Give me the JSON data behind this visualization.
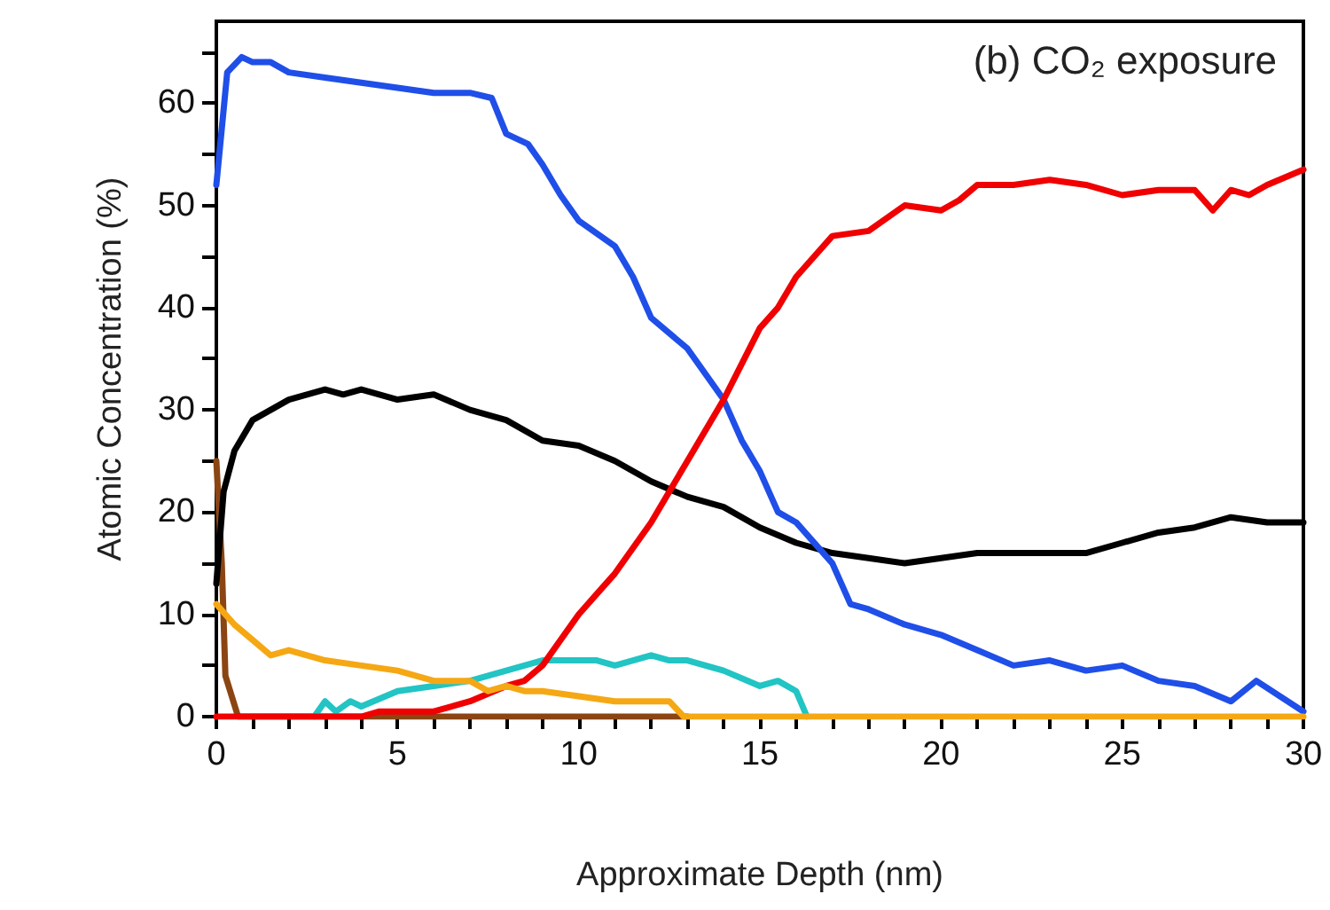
{
  "chart_data": {
    "type": "line",
    "title": "(b) CO₂ exposure",
    "xlabel": "Approximate Depth (nm)",
    "ylabel": "Atomic Concentration (%)",
    "xlim": [
      0,
      30
    ],
    "xticks": [
      0,
      {
        "value": 1,
        "label": null
      },
      {
        "value": 2,
        "label": null
      },
      {
        "value": 3,
        "label": null
      },
      {
        "value": 4,
        "label": null
      },
      5,
      {
        "value": 6,
        "label": null
      },
      {
        "value": 7,
        "label": null
      },
      {
        "value": 8,
        "label": null
      },
      {
        "value": 9,
        "label": null
      },
      10,
      {
        "value": 11,
        "label": null
      },
      {
        "value": 12,
        "label": null
      },
      {
        "value": 13,
        "label": null
      },
      {
        "value": 14,
        "label": null
      },
      15,
      {
        "value": 16,
        "label": null
      },
      {
        "value": 17,
        "label": null
      },
      {
        "value": 18,
        "label": null
      },
      {
        "value": 19,
        "label": null
      },
      20,
      {
        "value": 21,
        "label": null
      },
      {
        "value": 22,
        "label": null
      },
      {
        "value": 23,
        "label": null
      },
      {
        "value": 24,
        "label": null
      },
      25,
      {
        "value": 26,
        "label": null
      },
      {
        "value": 27,
        "label": null
      },
      {
        "value": 28,
        "label": null
      },
      {
        "value": 29,
        "label": null
      },
      30
    ],
    "ylim": [
      0,
      68
    ],
    "yticks": [
      0,
      {
        "value": 5,
        "label": null
      },
      10,
      {
        "value": 15,
        "label": null
      },
      20,
      {
        "value": 25,
        "label": null
      },
      30,
      {
        "value": 35,
        "label": null
      },
      40,
      {
        "value": 45,
        "label": null
      },
      50,
      {
        "value": 55,
        "label": null
      },
      60,
      {
        "value": 65,
        "label": null
      }
    ],
    "grid": false,
    "marker": "none",
    "line_style": "solid",
    "series": [
      {
        "color": "#8b4513",
        "x": [
          0,
          0.15,
          0.25,
          0.6,
          13
        ],
        "values": [
          25,
          15,
          4,
          0,
          0
        ]
      },
      {
        "color": "#22c4c4",
        "x": [
          2.7,
          3,
          3.3,
          3.7,
          4,
          5,
          6,
          7,
          8,
          9,
          10,
          10.5,
          11,
          12,
          12.5,
          13,
          14,
          15,
          15.5,
          16,
          16.3
        ],
        "values": [
          0,
          1.5,
          0.5,
          1.5,
          1,
          2.5,
          3,
          3.5,
          4.5,
          5.5,
          5.5,
          5.5,
          5,
          6,
          5.5,
          5.5,
          4.5,
          3,
          3.5,
          2.5,
          0
        ]
      },
      {
        "color": "#000000",
        "x": [
          0,
          0.2,
          0.5,
          1,
          2,
          3,
          3.5,
          4,
          5,
          6,
          7,
          8,
          9,
          10,
          11,
          12,
          13,
          14,
          15,
          16,
          17,
          18,
          19,
          20,
          21,
          22,
          23,
          24,
          25,
          26,
          27,
          28,
          29,
          30
        ],
        "values": [
          13,
          22,
          26,
          29,
          31,
          32,
          31.5,
          32,
          31,
          31.5,
          30,
          29,
          27,
          26.5,
          25,
          23,
          21.5,
          20.5,
          18.5,
          17,
          16,
          15.5,
          15,
          15.5,
          16,
          16,
          16,
          16,
          17,
          18,
          18.5,
          19.5,
          19,
          19
        ]
      },
      {
        "color": "#1f4fe8",
        "x": [
          0,
          0.3,
          0.7,
          1,
          1.5,
          2,
          3,
          4,
          5,
          6,
          7,
          7.6,
          8,
          8.6,
          9,
          9.5,
          10,
          11,
          11.5,
          12,
          13,
          14,
          14.5,
          15,
          15.5,
          16,
          17,
          17.5,
          18,
          19,
          20,
          21,
          22,
          23,
          24,
          25,
          26,
          27,
          28,
          28.7,
          30
        ],
        "values": [
          52,
          63,
          64.5,
          64,
          64,
          63,
          62.5,
          62,
          61.5,
          61,
          61,
          60.5,
          57,
          56,
          54,
          51,
          48.5,
          46,
          43,
          39,
          36,
          31,
          27,
          24,
          20,
          19,
          15,
          11,
          10.5,
          9,
          8,
          6.5,
          5,
          5.5,
          4.5,
          5,
          3.5,
          3,
          1.5,
          3.5,
          0.5
        ]
      },
      {
        "color": "#f00000",
        "x": [
          0,
          4,
          4.5,
          6,
          7,
          8,
          8.5,
          9,
          10,
          10.5,
          11,
          12,
          13,
          14,
          15,
          15.5,
          16,
          17,
          18,
          19,
          20,
          20.5,
          21,
          22,
          23,
          24,
          25,
          26,
          27,
          27.5,
          28,
          28.5,
          29,
          30
        ],
        "values": [
          0,
          0,
          0.5,
          0.5,
          1.5,
          3,
          3.5,
          5,
          10,
          12,
          14,
          19,
          25,
          31,
          38,
          40,
          43,
          47,
          47.5,
          50,
          49.5,
          50.5,
          52,
          52,
          52.5,
          52,
          51,
          51.5,
          51.5,
          49.5,
          51.5,
          51,
          52,
          53.5
        ]
      },
      {
        "color": "#f5a814",
        "x": [
          0,
          0.5,
          1,
          1.5,
          2,
          3,
          4,
          5,
          6,
          7,
          7.5,
          8,
          8.5,
          9,
          10,
          11,
          12,
          12.5,
          12.9,
          30
        ],
        "values": [
          11,
          9,
          7.5,
          6,
          6.5,
          5.5,
          5,
          4.5,
          3.5,
          3.5,
          2.5,
          3,
          2.5,
          2.5,
          2,
          1.5,
          1.5,
          1.5,
          0,
          0
        ]
      }
    ]
  }
}
